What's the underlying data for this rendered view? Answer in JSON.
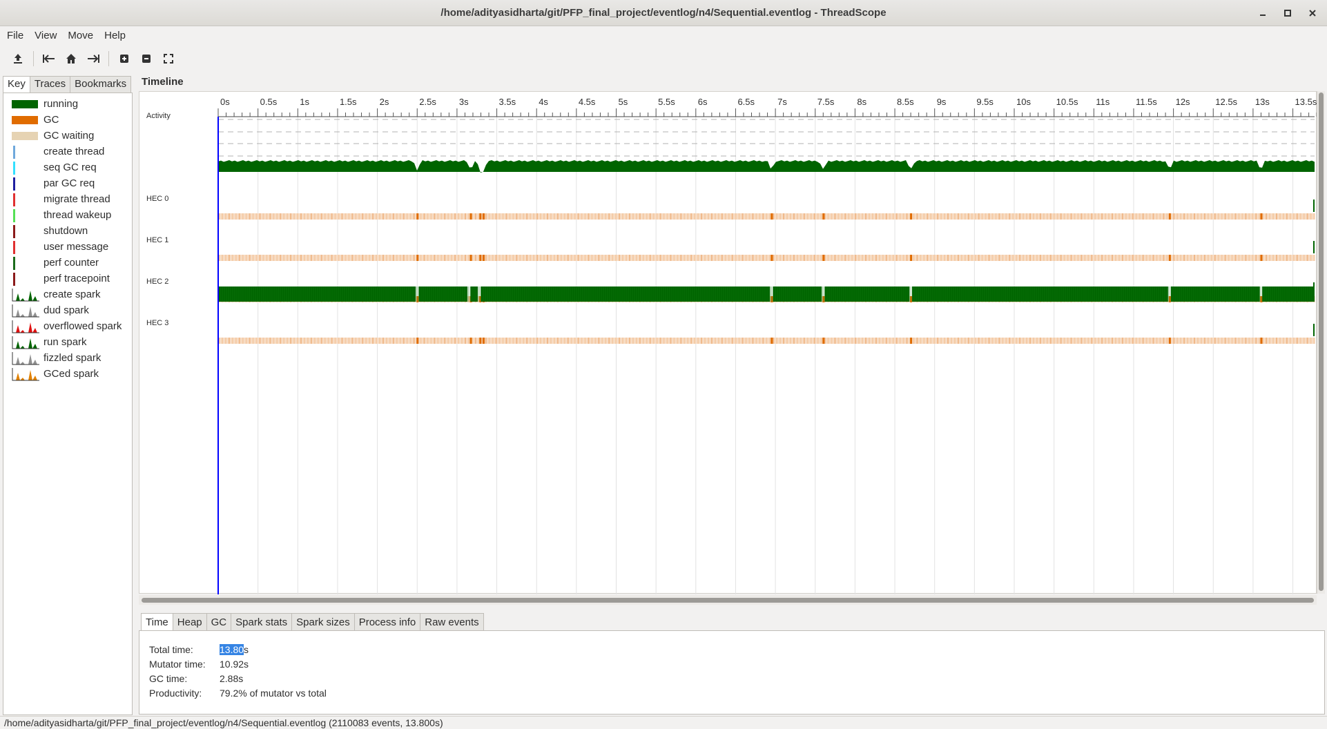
{
  "window": {
    "title": "/home/adityasidharta/git/PFP_final_project/eventlog/n4/Sequential.eventlog - ThreadScope"
  },
  "menu": [
    "File",
    "View",
    "Move",
    "Help"
  ],
  "toolbar": {
    "icons": [
      "open-icon",
      "jump-start-icon",
      "home-icon",
      "jump-end-icon",
      "zoom-in-icon",
      "zoom-out-icon",
      "zoom-fit-icon"
    ]
  },
  "left_tabs": [
    "Key",
    "Traces",
    "Bookmarks"
  ],
  "key_items": [
    {
      "label": "running",
      "kind": "swatch",
      "color": "#006400"
    },
    {
      "label": "GC",
      "kind": "swatch",
      "color": "#e06c00"
    },
    {
      "label": "GC waiting",
      "kind": "swatch",
      "color": "#e6d3b3"
    },
    {
      "label": "create thread",
      "kind": "line",
      "color": "#6fa8dc"
    },
    {
      "label": "seq GC req",
      "kind": "line",
      "color": "#33e0ff"
    },
    {
      "label": "par GC req",
      "kind": "line",
      "color": "#1f1fa0"
    },
    {
      "label": "migrate thread",
      "kind": "line",
      "color": "#e03030"
    },
    {
      "label": "thread wakeup",
      "kind": "line",
      "color": "#55e055"
    },
    {
      "label": "shutdown",
      "kind": "line",
      "color": "#8b1a1a"
    },
    {
      "label": "user message",
      "kind": "line",
      "color": "#e03030"
    },
    {
      "label": "perf counter",
      "kind": "line",
      "color": "#1b6b1b"
    },
    {
      "label": "perf tracepoint",
      "kind": "line",
      "color": "#8b1a1a"
    },
    {
      "label": "create spark",
      "kind": "spark",
      "color": "#006400"
    },
    {
      "label": "dud spark",
      "kind": "spark",
      "color": "#909090"
    },
    {
      "label": "overflowed spark",
      "kind": "spark",
      "color": "#e01010"
    },
    {
      "label": "run spark",
      "kind": "spark",
      "color": "#006400"
    },
    {
      "label": "fizzled spark",
      "kind": "spark",
      "color": "#909090"
    },
    {
      "label": "GCed spark",
      "kind": "spark",
      "color": "#e08000"
    }
  ],
  "timeline": {
    "title": "Timeline",
    "ticks": [
      "0s",
      "0.5s",
      "1s",
      "1.5s",
      "2s",
      "2.5s",
      "3s",
      "3.5s",
      "4s",
      "4.5s",
      "5s",
      "5.5s",
      "6s",
      "6.5s",
      "7s",
      "7.5s",
      "8s",
      "8.5s",
      "9s",
      "9.5s",
      "10s",
      "10.5s",
      "11s",
      "11.5s",
      "12s",
      "12.5s",
      "13s",
      "13.5s"
    ],
    "rows": [
      "Activity",
      "HEC 0",
      "HEC 1",
      "HEC 2",
      "HEC 3"
    ],
    "running_hec": 2,
    "running_gaps_s": [
      2.5,
      3.15,
      3.28,
      6.95,
      7.6,
      8.7,
      11.95,
      13.1
    ],
    "gc_marks_s": [
      2.5,
      3.17,
      3.29,
      3.33,
      6.95,
      7.6,
      8.7,
      11.95,
      13.1
    ]
  },
  "bottom_tabs": [
    "Time",
    "Heap",
    "GC",
    "Spark stats",
    "Spark sizes",
    "Process info",
    "Raw events"
  ],
  "stats": {
    "total_label": "Total time:",
    "total_value_selected": "13.80",
    "total_value_unit": "s",
    "mutator_label": "Mutator time:",
    "mutator_value": "10.92s",
    "gc_label": "GC time:",
    "gc_value": "2.88s",
    "productivity_label": "Productivity:",
    "productivity_value": "79.2% of mutator vs total"
  },
  "status": "/home/adityasidharta/git/PFP_final_project/eventlog/n4/Sequential.eventlog (2110083 events, 13.800s)"
}
